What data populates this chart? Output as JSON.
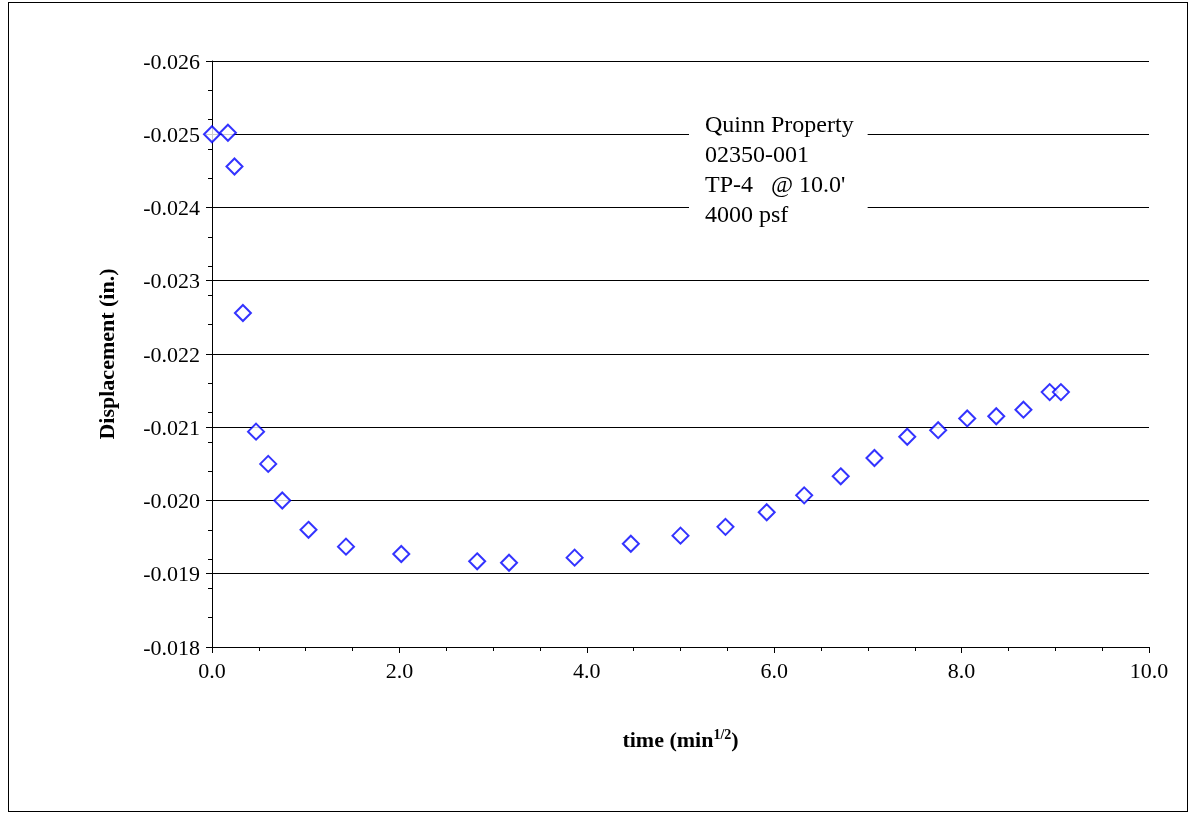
{
  "chart_data": {
    "type": "scatter",
    "xlabel": "time (min$^{1/2}$)",
    "ylabel": "Displacement (in.)",
    "annotations": [
      "Quinn Property",
      "02350-001",
      "TP-4   @ 10.0'",
      "4000 psf"
    ],
    "x": [
      0.0,
      0.17,
      0.24,
      0.33,
      0.47,
      0.6,
      0.75,
      1.03,
      1.43,
      2.02,
      2.83,
      3.17,
      3.87,
      4.47,
      5.0,
      5.48,
      5.92,
      6.32,
      6.71,
      7.07,
      7.42,
      7.75,
      8.06,
      8.37,
      8.66,
      8.94,
      9.06
    ],
    "series": [
      {
        "color": "#0000ff",
        "values": [
          -0.025,
          -0.02502,
          -0.02456,
          -0.02256,
          -0.02094,
          -0.0205,
          -0.02,
          -0.0196,
          -0.01937,
          -0.01927,
          -0.01917,
          -0.01915,
          -0.01922,
          -0.01941,
          -0.01952,
          -0.01964,
          -0.01984,
          -0.02007,
          -0.02033,
          -0.02058,
          -0.02087,
          -0.02096,
          -0.02112,
          -0.02115,
          -0.02124,
          -0.02148,
          -0.02148
        ]
      }
    ],
    "xlim": [
      0,
      10
    ],
    "xticks": [
      {
        "value": 0,
        "label": "0.0"
      },
      {
        "value": 2,
        "label": "2.0"
      },
      {
        "value": 4,
        "label": "4.0"
      },
      {
        "value": 6,
        "label": "6.0"
      },
      {
        "value": 8,
        "label": "8.0"
      },
      {
        "value": 10,
        "label": "10.0"
      }
    ],
    "ylim": [
      -0.018,
      -0.026
    ],
    "yticks": [
      {
        "value": -0.026,
        "label": "-0.026"
      },
      {
        "value": -0.025,
        "label": "-0.025"
      },
      {
        "value": -0.024,
        "label": "-0.024"
      },
      {
        "value": -0.023,
        "label": "-0.023"
      },
      {
        "value": -0.022,
        "label": "-0.022"
      },
      {
        "value": -0.021,
        "label": "-0.021"
      },
      {
        "value": -0.02,
        "label": "-0.020"
      },
      {
        "value": -0.019,
        "label": "-0.019"
      },
      {
        "value": -0.018,
        "label": "-0.018"
      }
    ],
    "grid": "y",
    "marker": "diamond"
  }
}
